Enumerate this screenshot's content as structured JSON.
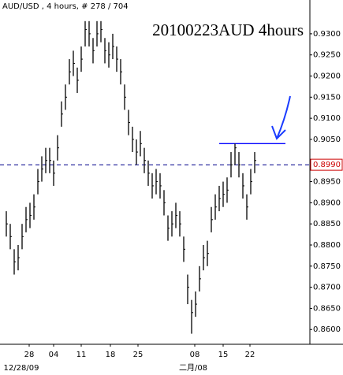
{
  "chart_data": {
    "type": "ohlc",
    "header": "AUD/USD , 4 hours, # 278 / 704",
    "title": "20100223AUD 4hours",
    "color": "#000000",
    "high": [
      0.888,
      0.885,
      0.879,
      0.88,
      0.885,
      0.889,
      0.89,
      0.892,
      0.898,
      0.901,
      0.903,
      0.903,
      0.9,
      0.906,
      0.914,
      0.918,
      0.924,
      0.926,
      0.922,
      0.927,
      0.933,
      0.933,
      0.929,
      0.933,
      0.933,
      0.929,
      0.928,
      0.93,
      0.927,
      0.924,
      0.918,
      0.912,
      0.908,
      0.905,
      0.907,
      0.903,
      0.9,
      0.897,
      0.898,
      0.897,
      0.893,
      0.887,
      0.888,
      0.89,
      0.888,
      0.882,
      0.873,
      0.867,
      0.869,
      0.875,
      0.88,
      0.881,
      0.889,
      0.892,
      0.894,
      0.895,
      0.896,
      0.902,
      0.904,
      0.902,
      0.897,
      0.892,
      0.898,
      0.902
    ],
    "low": [
      0.882,
      0.879,
      0.873,
      0.874,
      0.879,
      0.883,
      0.884,
      0.886,
      0.892,
      0.895,
      0.897,
      0.897,
      0.894,
      0.9,
      0.908,
      0.912,
      0.918,
      0.92,
      0.916,
      0.921,
      0.927,
      0.927,
      0.923,
      0.927,
      0.928,
      0.923,
      0.922,
      0.924,
      0.921,
      0.918,
      0.912,
      0.906,
      0.902,
      0.899,
      0.901,
      0.897,
      0.894,
      0.891,
      0.892,
      0.891,
      0.887,
      0.881,
      0.882,
      0.884,
      0.882,
      0.876,
      0.866,
      0.859,
      0.863,
      0.869,
      0.874,
      0.875,
      0.883,
      0.886,
      0.888,
      0.889,
      0.89,
      0.896,
      0.899,
      0.896,
      0.891,
      0.886,
      0.892,
      0.897
    ],
    "close": [
      0.885,
      0.882,
      0.876,
      0.877,
      0.882,
      0.886,
      0.887,
      0.889,
      0.895,
      0.898,
      0.9,
      0.9,
      0.897,
      0.903,
      0.911,
      0.915,
      0.921,
      0.923,
      0.919,
      0.924,
      0.931,
      0.93,
      0.926,
      0.93,
      0.931,
      0.926,
      0.925,
      0.927,
      0.924,
      0.921,
      0.915,
      0.909,
      0.905,
      0.902,
      0.904,
      0.9,
      0.897,
      0.894,
      0.895,
      0.894,
      0.89,
      0.884,
      0.885,
      0.887,
      0.885,
      0.879,
      0.87,
      0.864,
      0.866,
      0.872,
      0.877,
      0.878,
      0.886,
      0.889,
      0.891,
      0.892,
      0.893,
      0.899,
      0.903,
      0.899,
      0.894,
      0.889,
      0.895,
      0.9
    ],
    "xlim": [
      -1.6,
      77
    ],
    "xticks": [
      {
        "value": 5.8,
        "label": "28"
      },
      {
        "value": 12,
        "label": "04"
      },
      {
        "value": 19,
        "label": "11"
      },
      {
        "value": 26.4,
        "label": "18"
      },
      {
        "value": 33.4,
        "label": "25"
      },
      {
        "value": 47.8,
        "label": "08"
      },
      {
        "value": 55,
        "label": "15"
      },
      {
        "value": 61.8,
        "label": "22"
      }
    ],
    "xticks2": [
      {
        "value": 3.8,
        "label": "12/28/09"
      },
      {
        "value": 47.4,
        "label": "二月/08"
      }
    ],
    "ylim": [
      0.8565,
      0.938
    ],
    "yticks": [
      {
        "value": 0.86,
        "label": "0.8600"
      },
      {
        "value": 0.865,
        "label": "0.8650"
      },
      {
        "value": 0.87,
        "label": "0.8700"
      },
      {
        "value": 0.875,
        "label": "0.8750"
      },
      {
        "value": 0.88,
        "label": "0.8800"
      },
      {
        "value": 0.885,
        "label": "0.8850"
      },
      {
        "value": 0.89,
        "label": "0.8900"
      },
      {
        "value": 0.895,
        "label": "0.8950"
      },
      {
        "value": 0.905,
        "label": "0.9050"
      },
      {
        "value": 0.91,
        "label": "0.9100"
      },
      {
        "value": 0.915,
        "label": "0.9150"
      },
      {
        "value": 0.92,
        "label": "0.9200"
      },
      {
        "value": 0.925,
        "label": "0.9250"
      },
      {
        "value": 0.93,
        "label": "0.9300"
      }
    ],
    "current_price": {
      "value": 0.899,
      "label": "0.8990"
    },
    "trendline": {
      "value": 0.904,
      "x": [
        54,
        70.8
      ],
      "color": "#0000ff"
    }
  }
}
